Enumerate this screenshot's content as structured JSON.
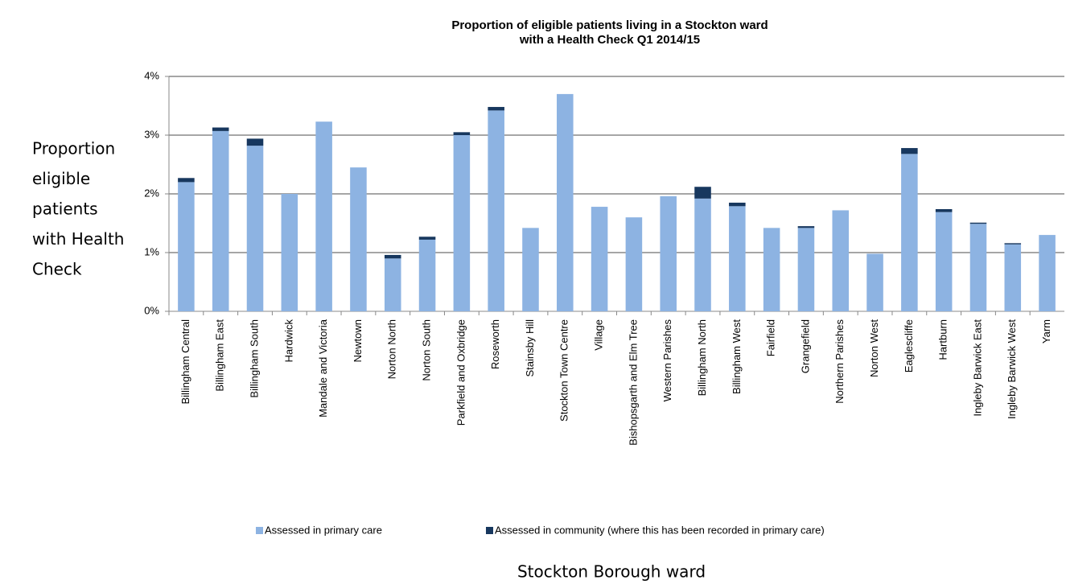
{
  "chart_data": {
    "type": "stacked_bar",
    "title": [
      "Proportion of eligible patients living in a Stockton ward",
      "with a Health Check Q1 2014/15"
    ],
    "y_label": [
      "Proportion",
      "eligible",
      "patients",
      "with Health",
      "Check"
    ],
    "x_label": "Stockton Borough ward",
    "categories": [
      "Billingham Central",
      "Billingham East",
      "Billingham South",
      "Hardwick",
      "Mandale and Victoria",
      "Newtown",
      "Norton North",
      "Norton South",
      "Parkfield and Oxbridge",
      "Roseworth",
      "Stainsby Hill",
      "Stockton Town Centre",
      "Village",
      "Bishopsgarth and Elm Tree",
      "Western Parishes",
      "Billingham North",
      "Billingham West",
      "Fairfield",
      "Grangefield",
      "Northern Parishes",
      "Norton West",
      "Eaglescliffe",
      "Hartburn",
      "Ingleby Barwick East",
      "Ingleby Barwick West",
      "Yarm"
    ],
    "series": [
      {
        "name": "Assessed in primary care",
        "color": "#8db3e2",
        "values": [
          2.2,
          3.07,
          2.82,
          2.0,
          3.23,
          2.45,
          0.9,
          1.22,
          3.0,
          3.42,
          1.42,
          3.7,
          1.78,
          1.6,
          1.96,
          1.92,
          1.79,
          1.42,
          1.42,
          1.72,
          0.98,
          2.68,
          1.69,
          1.49,
          1.14,
          1.3
        ]
      },
      {
        "name": "Assessed in community (where this has been recorded in primary care)",
        "color": "#17375e",
        "values": [
          0.07,
          0.06,
          0.12,
          0,
          0,
          0,
          0.06,
          0.05,
          0.05,
          0.06,
          0,
          0,
          0,
          0,
          0,
          0.2,
          0.06,
          0,
          0.03,
          0,
          0,
          0.1,
          0.05,
          0.02,
          0.02,
          0
        ]
      }
    ],
    "ylim": [
      0,
      4
    ],
    "yticks": [
      {
        "value": 0,
        "label": "0%"
      },
      {
        "value": 1,
        "label": "1%"
      },
      {
        "value": 2,
        "label": "2%"
      },
      {
        "value": 3,
        "label": "3%"
      },
      {
        "value": 4,
        "label": "4%"
      }
    ],
    "grid": true
  }
}
